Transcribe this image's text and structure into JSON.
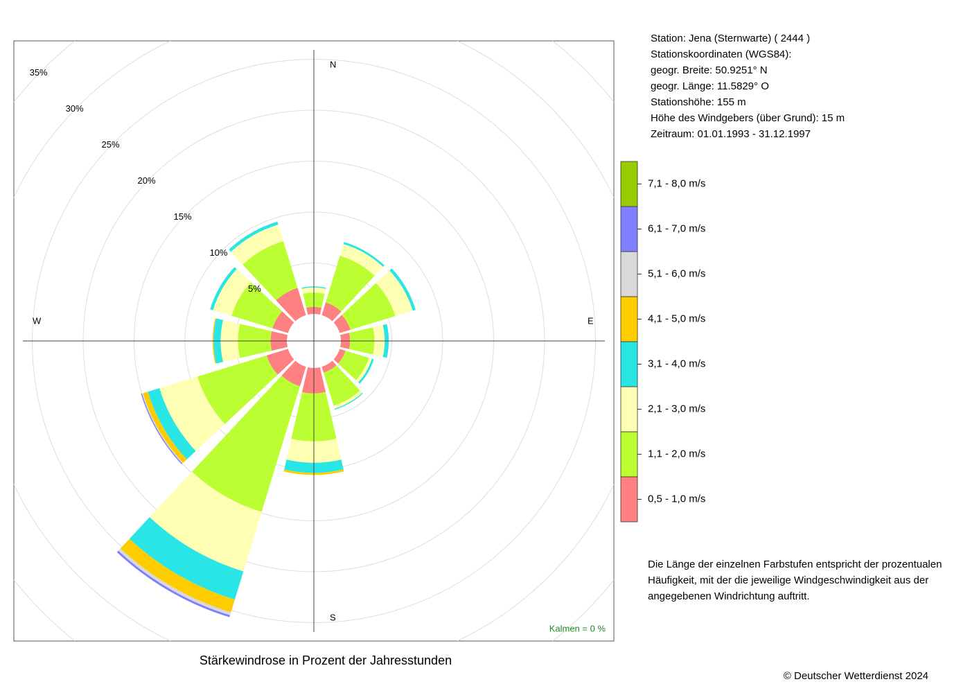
{
  "chart_data": {
    "type": "windrose",
    "title": "Stärkewindrose in Prozent der Jahresstunden",
    "compass": [
      "N",
      "E",
      "S",
      "W"
    ],
    "calm": "Kalmen  =  0 %",
    "rlim": [
      0,
      35
    ],
    "rticks": [
      {
        "value": 5,
        "label": "5%"
      },
      {
        "value": 10,
        "label": "10%"
      },
      {
        "value": 15,
        "label": "15%"
      },
      {
        "value": 20,
        "label": "20%"
      },
      {
        "value": 25,
        "label": "25%"
      },
      {
        "value": 30,
        "label": "30%"
      },
      {
        "value": 35,
        "label": "35%"
      }
    ],
    "series": [
      {
        "name": "0,5 - 1,0 m/s",
        "color": "#ff8080",
        "values": [
          0.7,
          1.3,
          1.1,
          0.9,
          0.6,
          0.6,
          2.5,
          2.0,
          2.2,
          1.6,
          1.6,
          2.8
        ]
      },
      {
        "name": "1,1 - 2,0 m/s",
        "color": "#bbff33",
        "values": [
          1.4,
          4.8,
          4.6,
          2.4,
          2.4,
          3.4,
          4.7,
          12.9,
          7.1,
          3.2,
          4.2,
          4.8
        ]
      },
      {
        "name": "2,1 - 3,0 m/s",
        "color": "#ffffb3",
        "values": [
          0.5,
          1.2,
          1.8,
          1.0,
          0.3,
          0.3,
          2.1,
          6.1,
          3.9,
          1.7,
          1.9,
          1.7
        ]
      },
      {
        "name": "3,1 - 4,0 m/s",
        "color": "#2ae5e5",
        "values": [
          0.1,
          0.2,
          0.3,
          0.4,
          0.2,
          0.1,
          1.0,
          2.9,
          1.2,
          0.7,
          0.3,
          0.3
        ]
      },
      {
        "name": "4,1 - 5,0 m/s",
        "color": "#ffcc00",
        "values": [
          0,
          0,
          0,
          0,
          0,
          0,
          0.2,
          1.3,
          0.5,
          0.1,
          0,
          0
        ]
      },
      {
        "name": "5,1 - 6,0 m/s",
        "color": "#d9d9d9",
        "values": [
          0,
          0,
          0,
          0,
          0,
          0,
          0,
          0.3,
          0.1,
          0,
          0,
          0
        ]
      },
      {
        "name": "6,1 - 7,0 m/s",
        "color": "#8080ff",
        "values": [
          0,
          0,
          0,
          0,
          0,
          0,
          0,
          0.2,
          0.1,
          0,
          0,
          0
        ]
      },
      {
        "name": "7,1 - 8,0 m/s",
        "color": "#99cc00",
        "values": [
          0,
          0,
          0,
          0,
          0,
          0,
          0,
          0,
          0,
          0,
          0,
          0
        ]
      }
    ]
  },
  "station": [
    "Station:  Jena (Sternwarte)  ( 2444 )",
    "Stationskoordinaten (WGS84):",
    "geogr. Breite: 50.9251° N",
    "geogr. Länge: 11.5829° O",
    "Stationshöhe: 155 m",
    "Höhe des Windgebers (über Grund): 15 m",
    "Zeitraum: 01.01.1993 - 31.12.1997"
  ],
  "note": [
    "Die Länge der einzelnen Farbstufen entspricht der prozentualen",
    "Häufigkeit, mit der die jeweilige Windgeschwindigkeit aus der",
    "angegebenen Windrichtung auftritt."
  ],
  "footer": "© Deutscher Wetterdienst  2024"
}
